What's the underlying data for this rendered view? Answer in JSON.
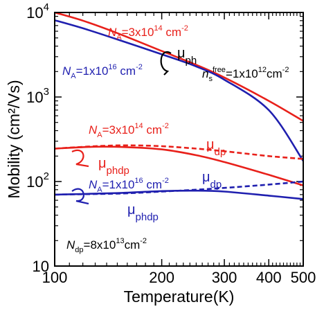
{
  "chart_data": {
    "type": "line",
    "title": "",
    "xlabel": "Temperature(K)",
    "ylabel": "Mobility (cm²/Vs)",
    "x_scale": "log",
    "y_scale": "log",
    "xlim": [
      100,
      500
    ],
    "ylim": [
      10,
      10000
    ],
    "x_ticks": [
      100,
      200,
      300,
      400,
      500
    ],
    "x_tick_labels": [
      "100",
      "200",
      "300",
      "400",
      "500"
    ],
    "y_ticks": [
      10,
      100,
      1000,
      10000
    ],
    "y_tick_labels": [
      {
        "base": "10",
        "exp": ""
      },
      {
        "base": "10",
        "exp": "2"
      },
      {
        "base": "10",
        "exp": "3"
      },
      {
        "base": "10",
        "exp": "4"
      }
    ],
    "series": [
      {
        "color": "#e8201a",
        "style": "solid",
        "points": [
          [
            100,
            10000
          ],
          [
            120,
            8000
          ],
          [
            150,
            5700
          ],
          [
            200,
            3500
          ],
          [
            250,
            2400
          ],
          [
            300,
            1700
          ],
          [
            400,
            900
          ],
          [
            500,
            520
          ]
        ]
      },
      {
        "color": "#1f1faf",
        "style": "solid",
        "points": [
          [
            100,
            8100
          ],
          [
            120,
            6500
          ],
          [
            150,
            4800
          ],
          [
            200,
            3200
          ],
          [
            250,
            2300
          ],
          [
            300,
            1600
          ],
          [
            400,
            700
          ],
          [
            500,
            175
          ]
        ]
      },
      {
        "color": "#e8201a",
        "style": "dashed",
        "points": [
          [
            100,
            245
          ],
          [
            130,
            262
          ],
          [
            160,
            268
          ],
          [
            200,
            262
          ],
          [
            250,
            245
          ],
          [
            300,
            228
          ],
          [
            400,
            200
          ],
          [
            500,
            185
          ]
        ]
      },
      {
        "color": "#e8201a",
        "style": "solid",
        "points": [
          [
            100,
            245
          ],
          [
            130,
            258
          ],
          [
            160,
            255
          ],
          [
            200,
            240
          ],
          [
            250,
            205
          ],
          [
            300,
            170
          ],
          [
            400,
            120
          ],
          [
            500,
            90
          ]
        ]
      },
      {
        "color": "#1f1faf",
        "style": "dashed",
        "points": [
          [
            100,
            70
          ],
          [
            150,
            72
          ],
          [
            200,
            76
          ],
          [
            250,
            80
          ],
          [
            300,
            84
          ],
          [
            400,
            92
          ],
          [
            500,
            100
          ]
        ]
      },
      {
        "color": "#1f1faf",
        "style": "solid",
        "points": [
          [
            100,
            70
          ],
          [
            150,
            73
          ],
          [
            200,
            77
          ],
          [
            250,
            78
          ],
          [
            300,
            76
          ],
          [
            400,
            68
          ],
          [
            500,
            62
          ]
        ]
      }
    ],
    "annotations": [
      {
        "id": "na-red-top",
        "color": "#e8201a",
        "parts": [
          [
            "N",
            "italic"
          ],
          [
            "A",
            "sub"
          ],
          [
            "=3x10",
            ""
          ],
          [
            "14",
            "sup"
          ],
          [
            " cm",
            ""
          ],
          [
            "-2",
            "sup"
          ]
        ]
      },
      {
        "id": "na-blue-top",
        "color": "#1f1faf",
        "parts": [
          [
            "N",
            "italic"
          ],
          [
            "A",
            "sub"
          ],
          [
            "=1x10",
            ""
          ],
          [
            "16",
            "sup"
          ],
          [
            " cm",
            ""
          ],
          [
            "-2",
            "sup"
          ]
        ]
      },
      {
        "id": "mu-ph",
        "color": "#000000",
        "parts": [
          [
            "μ",
            ""
          ],
          [
            "ph",
            "sub"
          ]
        ]
      },
      {
        "id": "ns-free",
        "color": "#000000",
        "parts": [
          [
            "n",
            "italic"
          ],
          [
            "s",
            "sub"
          ],
          [
            "free",
            "sup"
          ],
          [
            "=1x10",
            ""
          ],
          [
            "12",
            "sup"
          ],
          [
            "cm",
            ""
          ],
          [
            "-2",
            "sup"
          ]
        ]
      },
      {
        "id": "na-red-mid",
        "color": "#e8201a",
        "parts": [
          [
            "N",
            "italic"
          ],
          [
            "A",
            "sub"
          ],
          [
            "=3x10",
            ""
          ],
          [
            "14",
            "sup"
          ],
          [
            " cm",
            ""
          ],
          [
            "-2",
            "sup"
          ]
        ]
      },
      {
        "id": "mu-dp-red",
        "color": "#e8201a",
        "parts": [
          [
            "μ",
            ""
          ],
          [
            "dp",
            "sub"
          ]
        ]
      },
      {
        "id": "mu-phdp-red",
        "color": "#e8201a",
        "parts": [
          [
            "μ",
            ""
          ],
          [
            "phdp",
            "sub"
          ]
        ]
      },
      {
        "id": "na-blue-low",
        "color": "#1f1faf",
        "parts": [
          [
            "N",
            "italic"
          ],
          [
            "A",
            "sub"
          ],
          [
            "=1x10",
            ""
          ],
          [
            "16",
            "sup"
          ],
          [
            " cm",
            ""
          ],
          [
            "-2",
            "sup"
          ]
        ]
      },
      {
        "id": "mu-dp-blue",
        "color": "#1f1faf",
        "parts": [
          [
            "μ",
            ""
          ],
          [
            "dp",
            "sub"
          ]
        ]
      },
      {
        "id": "mu-phdp-blue",
        "color": "#1f1faf",
        "parts": [
          [
            "μ",
            ""
          ],
          [
            "phdp",
            "sub"
          ]
        ]
      },
      {
        "id": "ndp",
        "color": "#000000",
        "parts": [
          [
            "N",
            "italic"
          ],
          [
            "dp",
            "sub"
          ],
          [
            "=8x10",
            ""
          ],
          [
            "13",
            "sup"
          ],
          [
            "cm",
            ""
          ],
          [
            "-2",
            "sup"
          ]
        ]
      }
    ]
  }
}
